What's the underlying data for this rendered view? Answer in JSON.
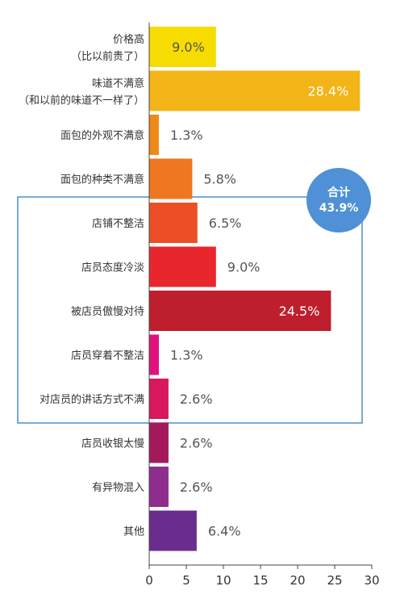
{
  "chart_data": {
    "type": "bar",
    "orientation": "horizontal",
    "categories": [
      [
        "价格高",
        "（比以前贵了）"
      ],
      [
        "味道不满意",
        "（和以前的味道不一样了）"
      ],
      [
        "面包的外观不满意"
      ],
      [
        "面包的种类不满意"
      ],
      [
        "店铺不整洁"
      ],
      [
        "店员态度冷淡"
      ],
      [
        "被店员傲慢对待"
      ],
      [
        "店员穿着不整洁"
      ],
      [
        "对店员的讲话方式不满"
      ],
      [
        "店员收银太慢"
      ],
      [
        "有异物混入"
      ],
      [
        "其他"
      ]
    ],
    "values": [
      9.0,
      28.4,
      1.3,
      5.8,
      6.5,
      9.0,
      24.5,
      1.3,
      2.6,
      2.6,
      2.6,
      6.4
    ],
    "labels": [
      "9.0%",
      "28.4%",
      "1.3%",
      "5.8%",
      "6.5%",
      "9.0%",
      "24.5%",
      "1.3%",
      "2.6%",
      "2.6%",
      "2.6%",
      "6.4%"
    ],
    "label_inside": [
      true,
      true,
      false,
      false,
      false,
      false,
      true,
      false,
      false,
      false,
      false,
      false
    ],
    "colors": [
      "#F6DC00",
      "#F3B417",
      "#EE8A1A",
      "#EF7722",
      "#EC4F26",
      "#E8262D",
      "#BE1E2D",
      "#E1127B",
      "#D7175E",
      "#A3195B",
      "#8E2D8E",
      "#6A2C8F"
    ],
    "label_inside_colors": [
      "#555555",
      "#ffffff",
      "",
      "",
      "",
      "",
      "#ffffff",
      "",
      "",
      "",
      "",
      ""
    ],
    "xlim": [
      0,
      30
    ],
    "xticks": [
      "0",
      "5",
      "10",
      "15",
      "20",
      "25",
      "30"
    ],
    "title": "",
    "xlabel": "",
    "ylabel": "",
    "grid": false,
    "group_highlight": {
      "start_index": 4,
      "end_index": 8,
      "border_color": "#4A90C8",
      "badge_label": "合计",
      "badge_value": "43.9%",
      "badge_color": "#4F90D6"
    }
  }
}
